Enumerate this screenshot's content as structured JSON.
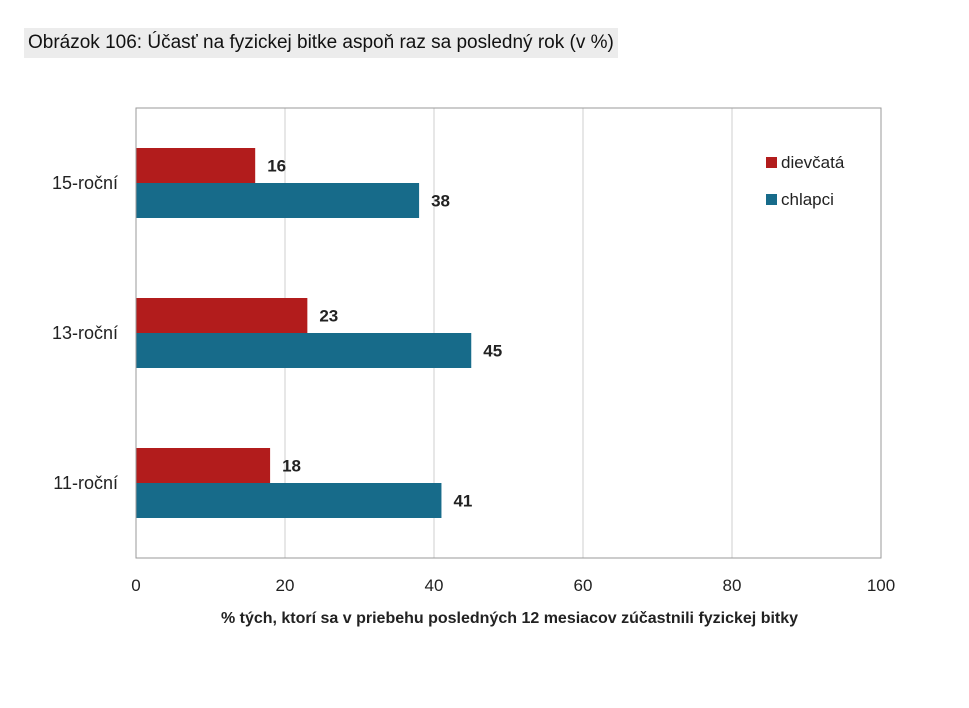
{
  "caption": "Obrázok 106: Účasť na fyzickej bitke aspoň raz sa posledný rok (v %)",
  "chart_data": {
    "type": "bar",
    "orientation": "horizontal",
    "title": "",
    "categories": [
      "15-roční",
      "13-roční",
      "11-roční"
    ],
    "series": [
      {
        "name": "dievčatá",
        "values": [
          16,
          23,
          18
        ],
        "color": "#b21c1c"
      },
      {
        "name": "chlapci",
        "values": [
          38,
          45,
          41
        ],
        "color": "#176b8a"
      }
    ],
    "xlabel": "% tých, ktorí sa v priebehu posledných 12 mesiacov zúčastnili fyzickej bitky",
    "ylabel": "",
    "xlim": [
      0,
      100
    ],
    "xticks": [
      0,
      20,
      40,
      60,
      80,
      100
    ],
    "grid": true,
    "legend": "top-right"
  }
}
